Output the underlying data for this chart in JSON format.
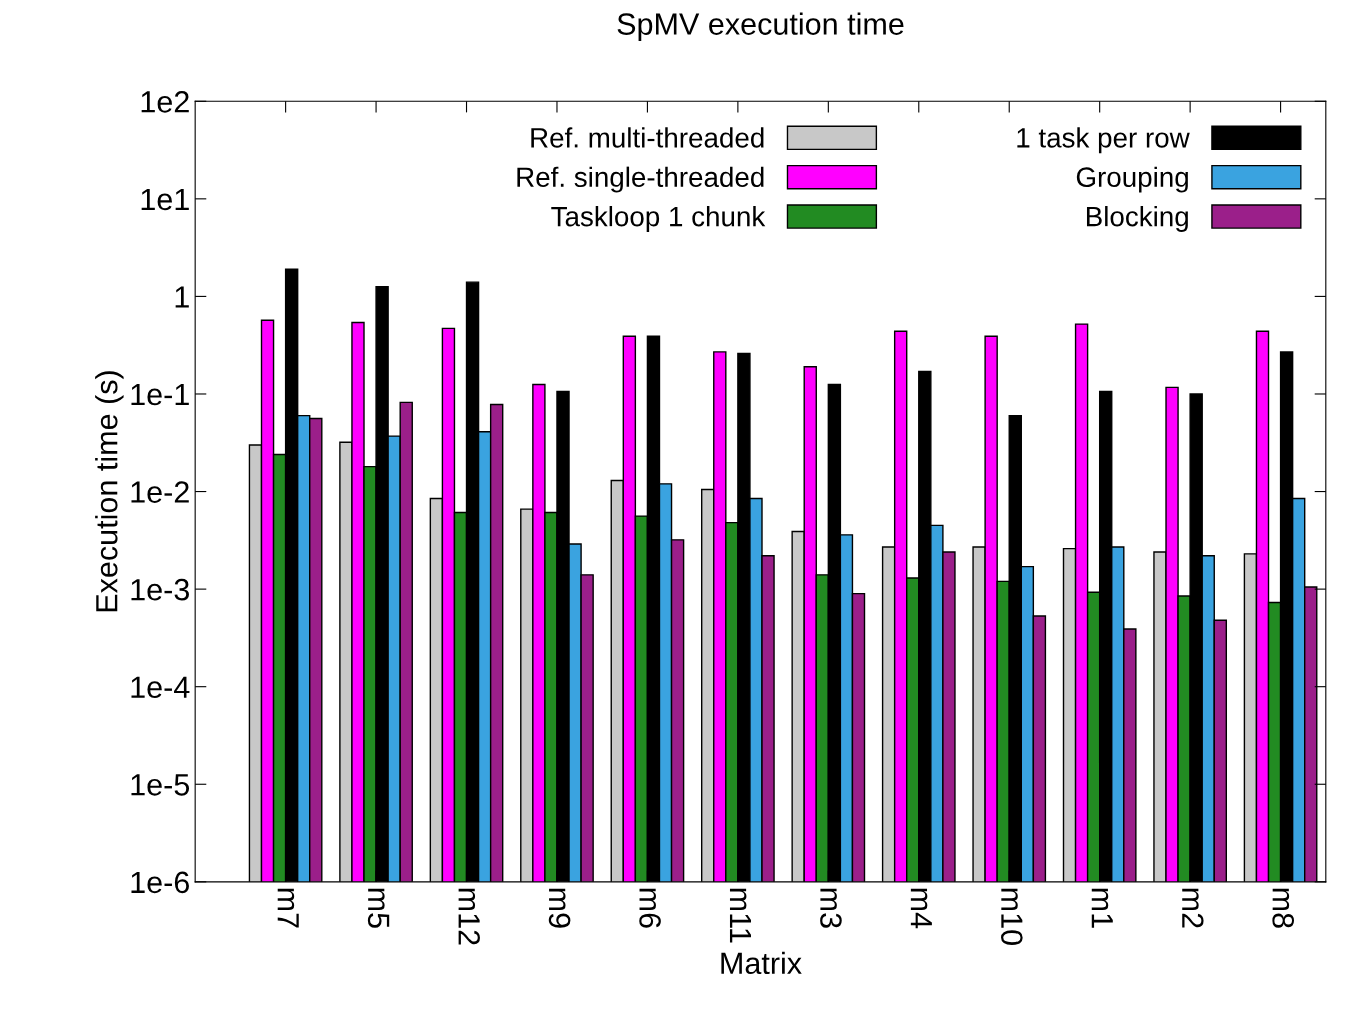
{
  "chart_data": {
    "type": "bar",
    "title": "SpMV execution time",
    "xlabel": "Matrix",
    "ylabel": "Execution time (s)",
    "categories": [
      "m7",
      "m5",
      "m12",
      "m9",
      "m6",
      "m11",
      "m3",
      "m4",
      "m10",
      "m1",
      "m2",
      "m8"
    ],
    "series": [
      {
        "name": "Ref. multi-threaded",
        "color": "#c8c8c8",
        "values": [
          0.03,
          0.032,
          0.0085,
          0.0066,
          0.013,
          0.0105,
          0.0039,
          0.0027,
          0.0027,
          0.0026,
          0.0024,
          0.0023
        ]
      },
      {
        "name": "Ref. single-threaded",
        "color": "#ff00ff",
        "values": [
          0.57,
          0.54,
          0.47,
          0.125,
          0.39,
          0.27,
          0.19,
          0.44,
          0.39,
          0.52,
          0.117,
          0.44
        ]
      },
      {
        "name": "Taskloop 1 chunk",
        "color": "#228b22",
        "values": [
          0.024,
          0.018,
          0.0061,
          0.0061,
          0.0056,
          0.0048,
          0.0014,
          0.0013,
          0.0012,
          0.00093,
          0.00085,
          0.00073
        ]
      },
      {
        "name": "1 task per row",
        "color": "#000000",
        "values": [
          1.9,
          1.26,
          1.4,
          0.106,
          0.39,
          0.26,
          0.125,
          0.17,
          0.06,
          0.106,
          0.1,
          0.27
        ]
      },
      {
        "name": "Grouping",
        "color": "#3aa3e0",
        "values": [
          0.06,
          0.037,
          0.041,
          0.0029,
          0.012,
          0.0085,
          0.0036,
          0.0045,
          0.0017,
          0.0027,
          0.0022,
          0.0085
        ]
      },
      {
        "name": "Blocking",
        "color": "#9b1f8a",
        "values": [
          0.056,
          0.082,
          0.078,
          0.0014,
          0.0032,
          0.0022,
          0.0009,
          0.0024,
          0.00053,
          0.00039,
          0.00048,
          0.00105
        ]
      }
    ],
    "log": "y",
    "ylim": [
      1e-06,
      100
    ],
    "yticks": [
      {
        "value": 1e-06,
        "label": "1e-6"
      },
      {
        "value": 1e-05,
        "label": "1e-5"
      },
      {
        "value": 0.0001,
        "label": "1e-4"
      },
      {
        "value": 0.001,
        "label": "1e-3"
      },
      {
        "value": 0.01,
        "label": "1e-2"
      },
      {
        "value": 0.1,
        "label": "1e-1"
      },
      1,
      {
        "value": 10,
        "label": "1e1"
      },
      {
        "value": 100,
        "label": "1e2"
      }
    ],
    "grid": false,
    "legend": "top right"
  }
}
